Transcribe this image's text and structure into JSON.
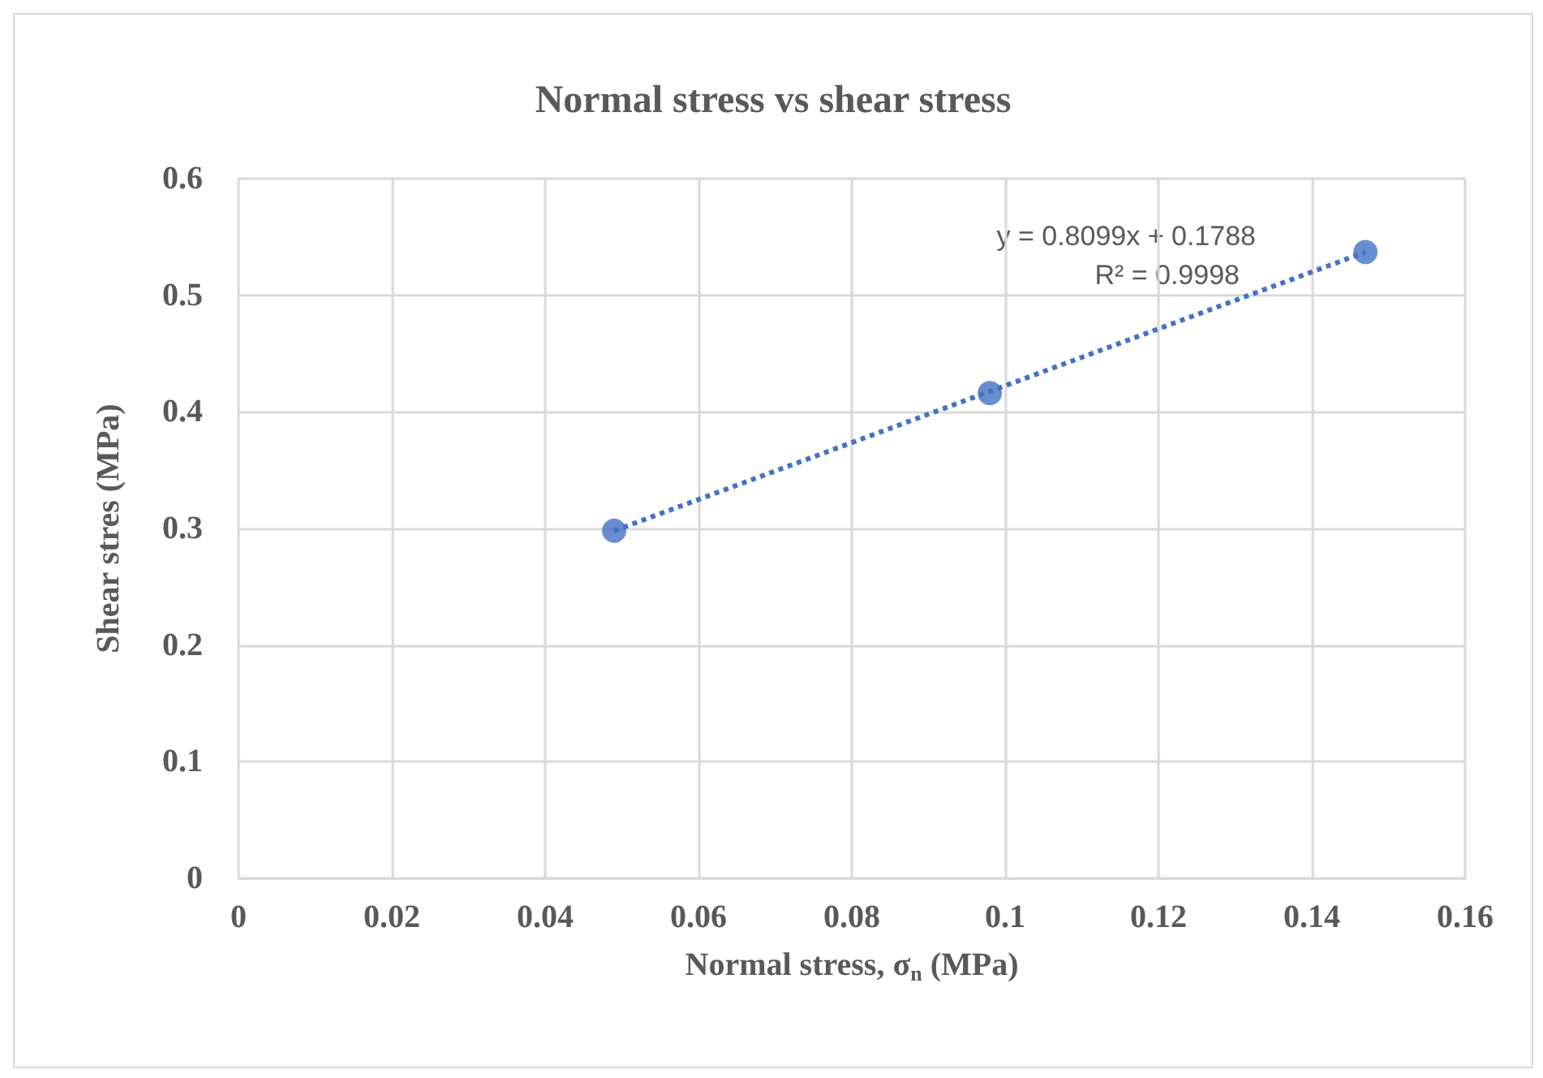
{
  "chart_data": {
    "type": "scatter",
    "title": "Normal stress vs shear stress",
    "xlabel": "Normal stress, σ$_{n}$ (MPa)",
    "ylabel": "Shear stres (MPa)",
    "x": [
      0.049,
      0.098,
      0.147
    ],
    "series": [
      {
        "color": "#4472c4",
        "values": [
          0.298,
          0.416,
          0.537
        ],
        "marker": "circle"
      },
      {
        "type": "line",
        "color": "#4472c4",
        "x": [
          0.049,
          0.147
        ],
        "values": [
          0.298,
          0.537
        ],
        "marker": "none",
        "line_style": "dotted"
      }
    ],
    "annotations": [
      "y = 0.8099x + 0.1788",
      "R² = 0.9998"
    ],
    "xlim": [
      0,
      0.16
    ],
    "xticks": [
      0,
      0.02,
      0.04,
      0.06,
      0.08,
      0.1,
      0.12,
      0.14,
      0.16
    ],
    "ylim": [
      0,
      0.6
    ],
    "yticks": [
      0,
      0.1,
      0.2,
      0.3,
      0.4,
      0.5,
      0.6
    ],
    "grid": true
  }
}
